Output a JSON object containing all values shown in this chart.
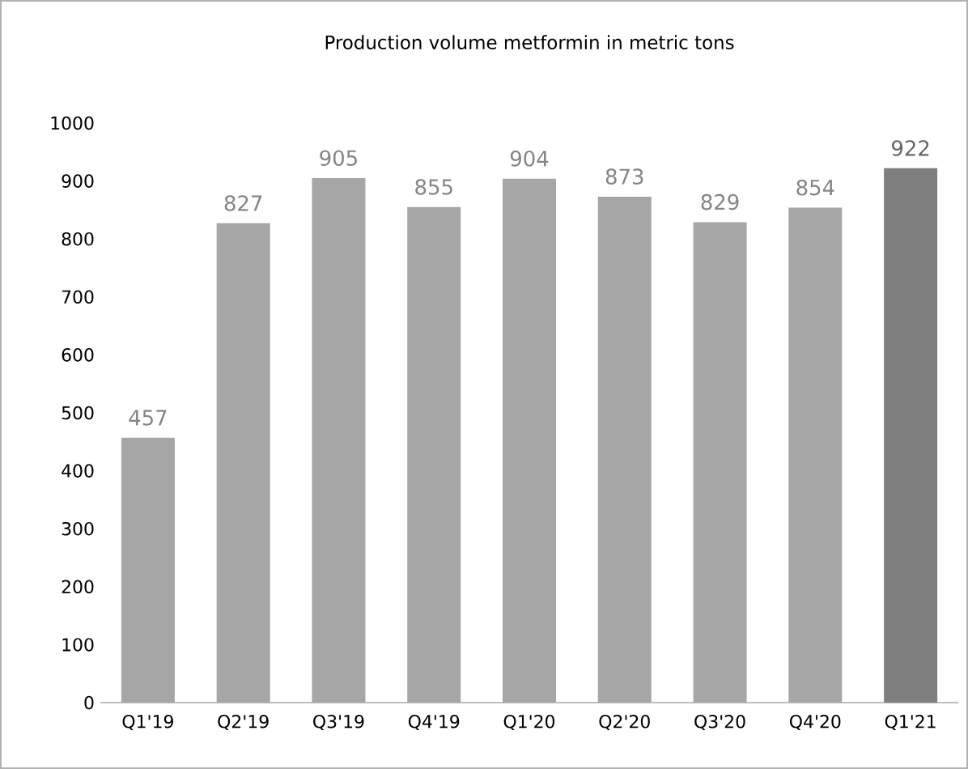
{
  "chart_data": {
    "type": "bar",
    "title": "Production volume metformin in metric tons",
    "categories": [
      "Q1'19",
      "Q2'19",
      "Q3'19",
      "Q4'19",
      "Q1'20",
      "Q2'20",
      "Q3'20",
      "Q4'20",
      "Q1'21"
    ],
    "values": [
      457,
      827,
      905,
      855,
      904,
      873,
      829,
      854,
      922
    ],
    "colors": [
      "#a6a6a6",
      "#a6a6a6",
      "#a6a6a6",
      "#a6a6a6",
      "#a6a6a6",
      "#a6a6a6",
      "#a6a6a6",
      "#a6a6a6",
      "#7f7f7f"
    ],
    "ylim": [
      0,
      1000
    ],
    "yticks": [
      0,
      100,
      200,
      300,
      400,
      500,
      600,
      700,
      800,
      900,
      1000
    ],
    "data_labels": true
  }
}
